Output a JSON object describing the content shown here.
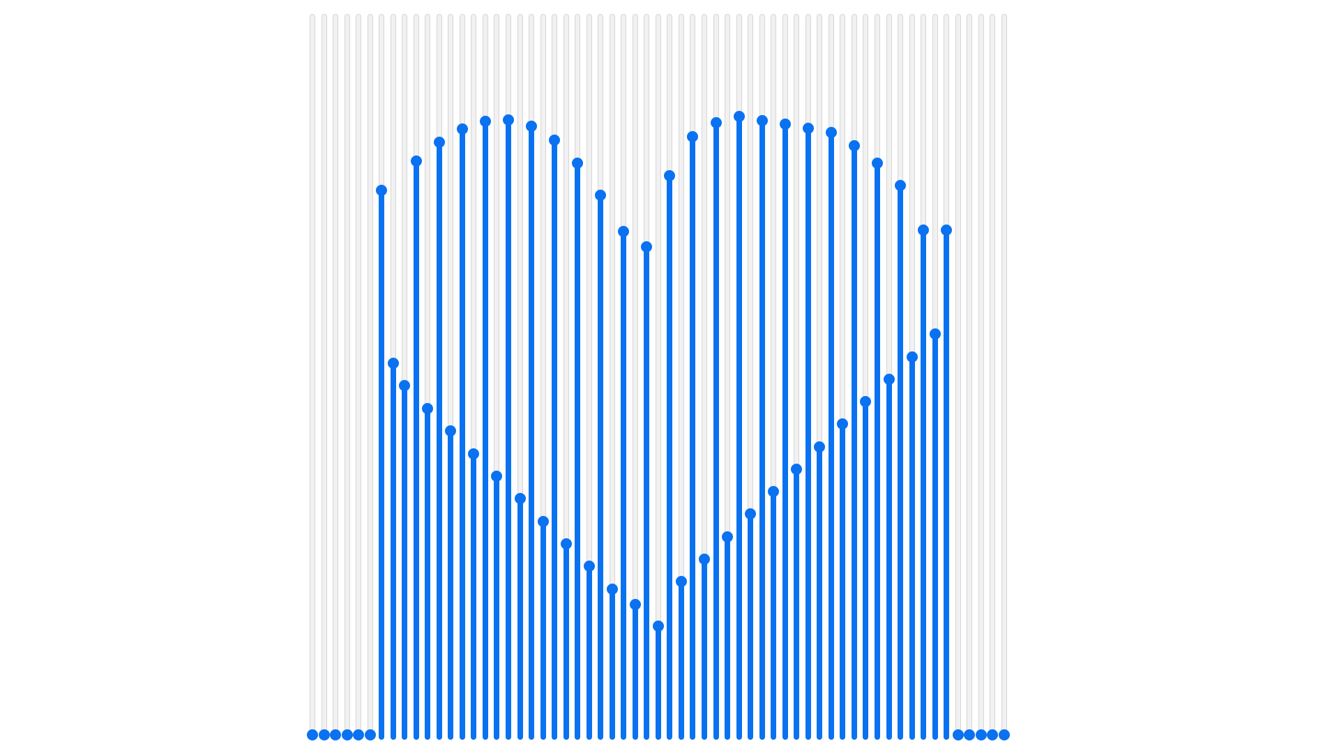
{
  "sliders": {
    "count": 65,
    "min": 0,
    "max": 1,
    "values": [
      0,
      0,
      0,
      0,
      0,
      0,
      0.756,
      0.5158,
      0.4846,
      0.7964,
      0.4532,
      0.8226,
      0.4219,
      0.8412,
      0.3906,
      0.8519,
      0.3592,
      0.8537,
      0.3279,
      0.8453,
      0.2965,
      0.8255,
      0.2652,
      0.7935,
      0.2339,
      0.7491,
      0.2026,
      0.6993,
      0.1813,
      0.6776,
      0.151,
      0.7767,
      0.2125,
      0.8304,
      0.2438,
      0.8502,
      0.2751,
      0.8591,
      0.3064,
      0.8524,
      0.3377,
      0.8476,
      0.3689,
      0.8421,
      0.4001,
      0.8365,
      0.4314,
      0.8177,
      0.4626,
      0.7942,
      0.4939,
      0.7625,
      0.5251,
      0.7006,
      0.5564,
      0.7006,
      0,
      0,
      0,
      0,
      0
    ]
  },
  "colors": {
    "accent": "#0a72f0",
    "track": "#f1f1f1",
    "track_border": "#d6d6d6"
  }
}
